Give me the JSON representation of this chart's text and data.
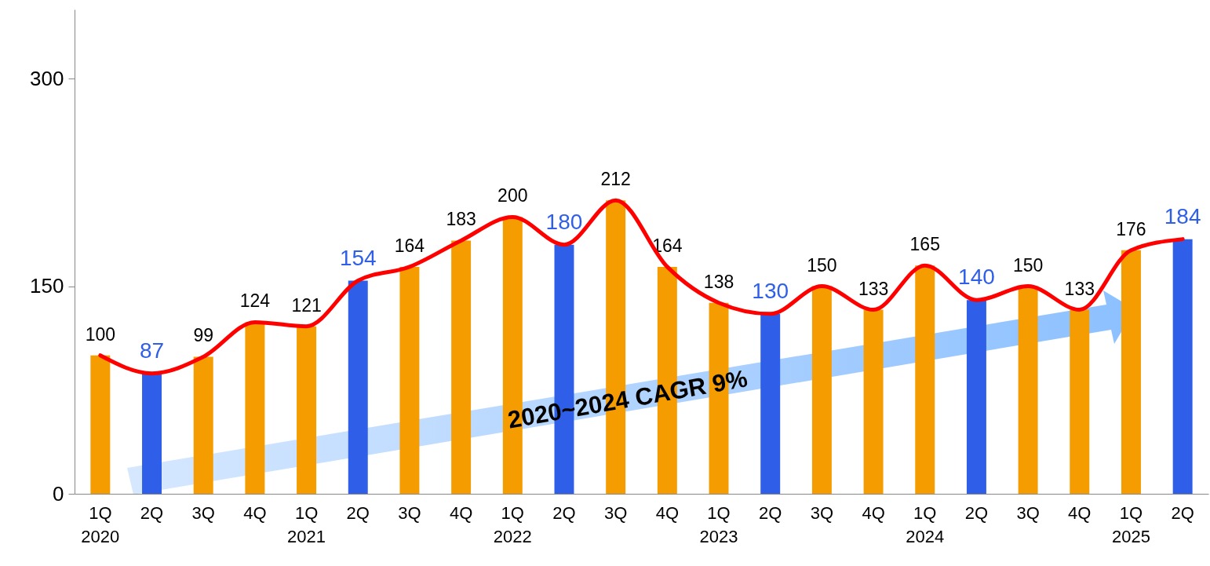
{
  "chart_data": {
    "type": "bar",
    "categories": [
      "1Q\n2020",
      "2Q",
      "3Q",
      "4Q",
      "1Q\n2021",
      "2Q",
      "3Q",
      "4Q",
      "1Q\n2022",
      "2Q",
      "3Q",
      "4Q",
      "1Q\n2023",
      "2Q",
      "3Q",
      "4Q",
      "1Q\n2024",
      "2Q",
      "3Q",
      "4Q",
      "1Q\n2025",
      "2Q"
    ],
    "series": [
      {
        "data_labels": true,
        "values": [
          100,
          87,
          99,
          124,
          121,
          154,
          164,
          183,
          200,
          180,
          212,
          164,
          138,
          130,
          150,
          133,
          165,
          140,
          150,
          133,
          176,
          184
        ],
        "colors": [
          "#f59c00",
          "#2f5fe8",
          "#f59c00",
          "#f59c00",
          "#f59c00",
          "#2f5fe8",
          "#f59c00",
          "#f59c00",
          "#f59c00",
          "#2f5fe8",
          "#f59c00",
          "#f59c00",
          "#f59c00",
          "#2f5fe8",
          "#f59c00",
          "#f59c00",
          "#f59c00",
          "#2f5fe8",
          "#f59c00",
          "#f59c00",
          "#f59c00",
          "#2f5fe8"
        ]
      },
      {
        "type": "line",
        "color": "#ff0000",
        "values": [
          100,
          87,
          99,
          124,
          121,
          154,
          164,
          183,
          200,
          180,
          212,
          164,
          138,
          130,
          150,
          133,
          165,
          140,
          150,
          133,
          176,
          184
        ]
      }
    ],
    "ylim": [
      0,
      350
    ],
    "yticks": [
      0,
      150,
      300
    ],
    "grid": false,
    "marker": "none",
    "annotations": [
      "2020~2024 CAGR 9%"
    ]
  }
}
